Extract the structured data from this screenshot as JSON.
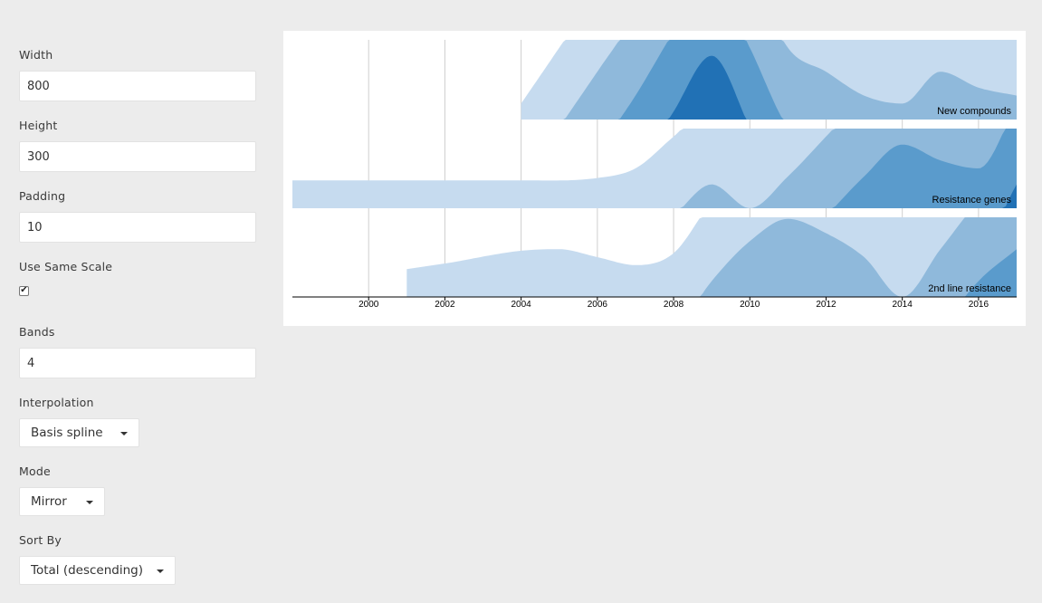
{
  "form": {
    "width": {
      "label": "Width",
      "value": "800"
    },
    "height": {
      "label": "Height",
      "value": "300"
    },
    "padding": {
      "label": "Padding",
      "value": "10"
    },
    "same_scale": {
      "label": "Use Same Scale",
      "checked": true,
      "mark": "✔"
    },
    "bands": {
      "label": "Bands",
      "value": "4"
    },
    "interpolation": {
      "label": "Interpolation",
      "value": "Basis spline"
    },
    "mode": {
      "label": "Mode",
      "value": "Mirror"
    },
    "sort_by": {
      "label": "Sort By",
      "value": "Total (descending)"
    }
  },
  "chart_data": {
    "type": "area",
    "subtype": "horizon",
    "bands": 4,
    "mode": "mirror",
    "xlim": [
      1998,
      2017
    ],
    "x_ticks": [
      "2000",
      "2002",
      "2004",
      "2006",
      "2008",
      "2010",
      "2012",
      "2014",
      "2016"
    ],
    "band_colors": [
      "#c6dbef",
      "#8fb9db",
      "#5a9bcc",
      "#2171b5"
    ],
    "series": [
      {
        "name": "New compounds",
        "x": [
          2004,
          2005,
          2006,
          2007,
          2008,
          2009,
          2010,
          2011,
          2012,
          2013,
          2014,
          2015,
          2016,
          2017
        ],
        "level": [
          0.2,
          0.9,
          1.6,
          2.3,
          3.1,
          3.8,
          2.9,
          1.9,
          1.6,
          1.3,
          1.2,
          1.6,
          1.4,
          1.3
        ]
      },
      {
        "name": "Resistance genes",
        "x": [
          1998,
          2000,
          2002,
          2004,
          2006,
          2007,
          2008,
          2009,
          2010,
          2011,
          2012,
          2013,
          2014,
          2015,
          2016,
          2017
        ],
        "level": [
          0.35,
          0.35,
          0.35,
          0.35,
          0.38,
          0.5,
          0.9,
          1.3,
          1.0,
          1.4,
          1.9,
          2.4,
          2.8,
          2.6,
          2.5,
          3.3
        ]
      },
      {
        "name": "2nd line resistance",
        "x": [
          2001,
          2002,
          2004,
          2005,
          2006,
          2007,
          2008,
          2009,
          2010,
          2011,
          2012,
          2013,
          2014,
          2015,
          2016,
          2017
        ],
        "level": [
          0.35,
          0.42,
          0.58,
          0.6,
          0.5,
          0.4,
          0.55,
          1.2,
          1.7,
          1.98,
          1.8,
          1.5,
          1.0,
          1.6,
          2.2,
          2.6
        ]
      }
    ]
  }
}
